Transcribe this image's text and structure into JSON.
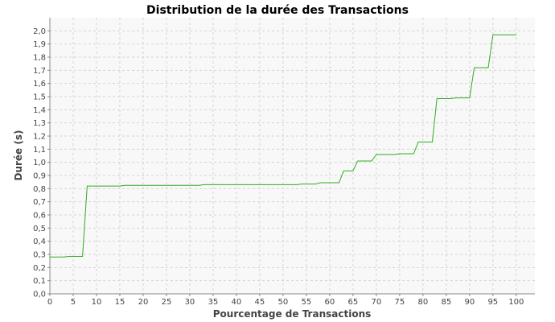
{
  "chart_data": {
    "type": "line",
    "title": "Distribution de la durée des Transactions",
    "xlabel": "Pourcentage de Transactions",
    "ylabel": "Durée (s)",
    "xlim": [
      0,
      104
    ],
    "ylim": [
      0,
      2.1
    ],
    "xticks": [
      "0",
      "5",
      "10",
      "15",
      "20",
      "25",
      "30",
      "35",
      "40",
      "45",
      "50",
      "55",
      "60",
      "65",
      "70",
      "75",
      "80",
      "85",
      "90",
      "95",
      "100"
    ],
    "yticks": [
      "0,0",
      "0,1",
      "0,2",
      "0,3",
      "0,4",
      "0,5",
      "0,6",
      "0,7",
      "0,8",
      "0,9",
      "1,0",
      "1,1",
      "1,2",
      "1,3",
      "1,4",
      "1,5",
      "1,6",
      "1,7",
      "1,8",
      "1,9",
      "2,0"
    ],
    "grid": true,
    "background": "#f8f8f8",
    "series": [
      {
        "color": "#33aa22",
        "step": true,
        "x": [
          0,
          3,
          4,
          7,
          8,
          15,
          16,
          32,
          33,
          53,
          54,
          57,
          58,
          62,
          63,
          65,
          66,
          69,
          70,
          74,
          75,
          78,
          79,
          82,
          83,
          86,
          87,
          90,
          91,
          94,
          95,
          100
        ],
        "y": [
          0.28,
          0.28,
          0.285,
          0.285,
          0.82,
          0.82,
          0.825,
          0.825,
          0.83,
          0.83,
          0.835,
          0.835,
          0.845,
          0.845,
          0.935,
          0.935,
          1.01,
          1.01,
          1.06,
          1.06,
          1.065,
          1.065,
          1.155,
          1.155,
          1.485,
          1.485,
          1.49,
          1.49,
          1.72,
          1.72,
          1.97,
          1.97
        ]
      }
    ]
  }
}
